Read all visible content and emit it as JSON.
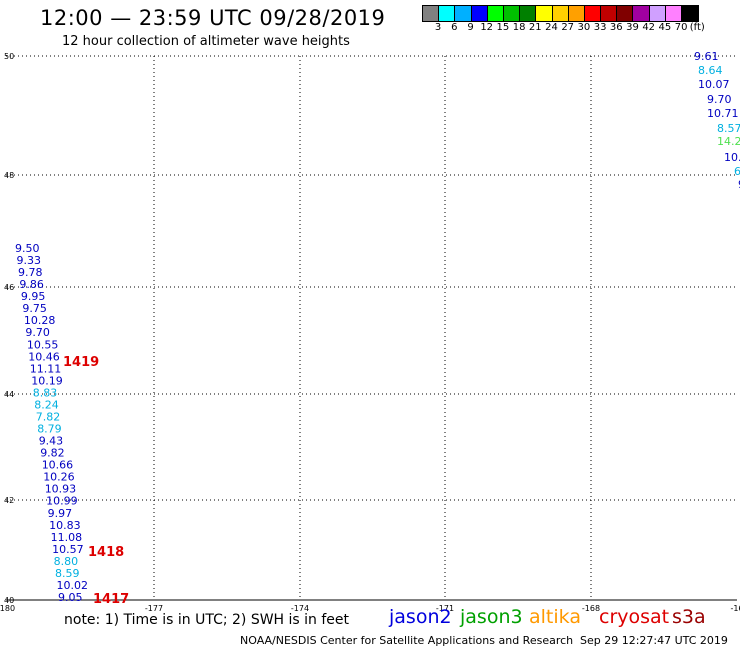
{
  "header": {
    "title": "12:00 — 23:59 UTC 09/28/2019",
    "subtitle": "12 hour collection of altimeter wave heights"
  },
  "colorbar": {
    "colors": [
      "#808080",
      "#00ffff",
      "#00b0ff",
      "#0000ff",
      "#00ff00",
      "#00c000",
      "#008000",
      "#ffff00",
      "#ffd000",
      "#ffa000",
      "#ff0000",
      "#c00000",
      "#800000",
      "#a000a0",
      "#d0a0ff",
      "#ff80ff",
      "#000000"
    ],
    "labels": [
      "3",
      "6",
      "9",
      "12",
      "15",
      "18",
      "21",
      "24",
      "27",
      "30",
      "33",
      "36",
      "39",
      "42",
      "45",
      "70",
      "(ft)"
    ]
  },
  "axes": {
    "lat_ticks": [
      "50",
      "48",
      "46",
      "44",
      "42",
      "40"
    ],
    "lon_ticks": [
      "-180",
      "-177",
      "-174",
      "-171",
      "-168",
      "-16"
    ]
  },
  "tracks": {
    "track1": {
      "color_map": {
        "d": "#0000c0",
        "c": "#00b0e0",
        "g": "#50e050"
      },
      "values": [
        [
          "9.61",
          "d"
        ],
        [
          "8.64",
          "c"
        ],
        [
          "10.07",
          "d"
        ],
        [
          "9.70",
          "d"
        ],
        [
          "10.71",
          "d"
        ],
        [
          "8.57",
          "c"
        ],
        [
          "14.2",
          "g"
        ],
        [
          "10.",
          "d"
        ],
        [
          "6",
          "c"
        ],
        [
          "9",
          "d"
        ]
      ]
    },
    "track2": {
      "values": [
        [
          "9.50",
          "d"
        ],
        [
          "9.33",
          "d"
        ],
        [
          "9.78",
          "d"
        ],
        [
          "9.86",
          "d"
        ],
        [
          "9.95",
          "d"
        ],
        [
          "9.75",
          "d"
        ],
        [
          "10.28",
          "d"
        ],
        [
          "9.70",
          "d"
        ],
        [
          "10.55",
          "d"
        ],
        [
          "10.46",
          "d"
        ],
        [
          "11.11",
          "d"
        ],
        [
          "10.19",
          "d"
        ],
        [
          "8.83",
          "c"
        ],
        [
          "8.24",
          "c"
        ],
        [
          "7.82",
          "c"
        ],
        [
          "8.79",
          "c"
        ],
        [
          "9.43",
          "d"
        ],
        [
          "9.82",
          "d"
        ],
        [
          "10.66",
          "d"
        ],
        [
          "10.26",
          "d"
        ],
        [
          "10.93",
          "d"
        ],
        [
          "10.99",
          "d"
        ],
        [
          "9.97",
          "d"
        ],
        [
          "10.83",
          "d"
        ],
        [
          "11.08",
          "d"
        ],
        [
          "10.57",
          "d"
        ],
        [
          "8.80",
          "c"
        ],
        [
          "8.59",
          "c"
        ],
        [
          "10.02",
          "d"
        ],
        [
          "9.05",
          "d"
        ]
      ]
    },
    "time_labels": [
      "1419",
      "1418",
      "1417"
    ]
  },
  "footer": {
    "note": "note: 1) Time is in UTC; 2) SWH is in feet",
    "legend": [
      {
        "name": "jason2",
        "color": "#0000dd"
      },
      {
        "name": "jason3",
        "color": "#00a000"
      },
      {
        "name": "altika",
        "color": "#ff9900"
      },
      {
        "name": "cryosat",
        "color": "#dd0000"
      },
      {
        "name": "s3a",
        "color": "#990000"
      }
    ],
    "credit": "NOAA/NESDIS Center for Satellite Applications and Research",
    "timestamp": "Sep 29 12:27:47 UTC 2019"
  }
}
